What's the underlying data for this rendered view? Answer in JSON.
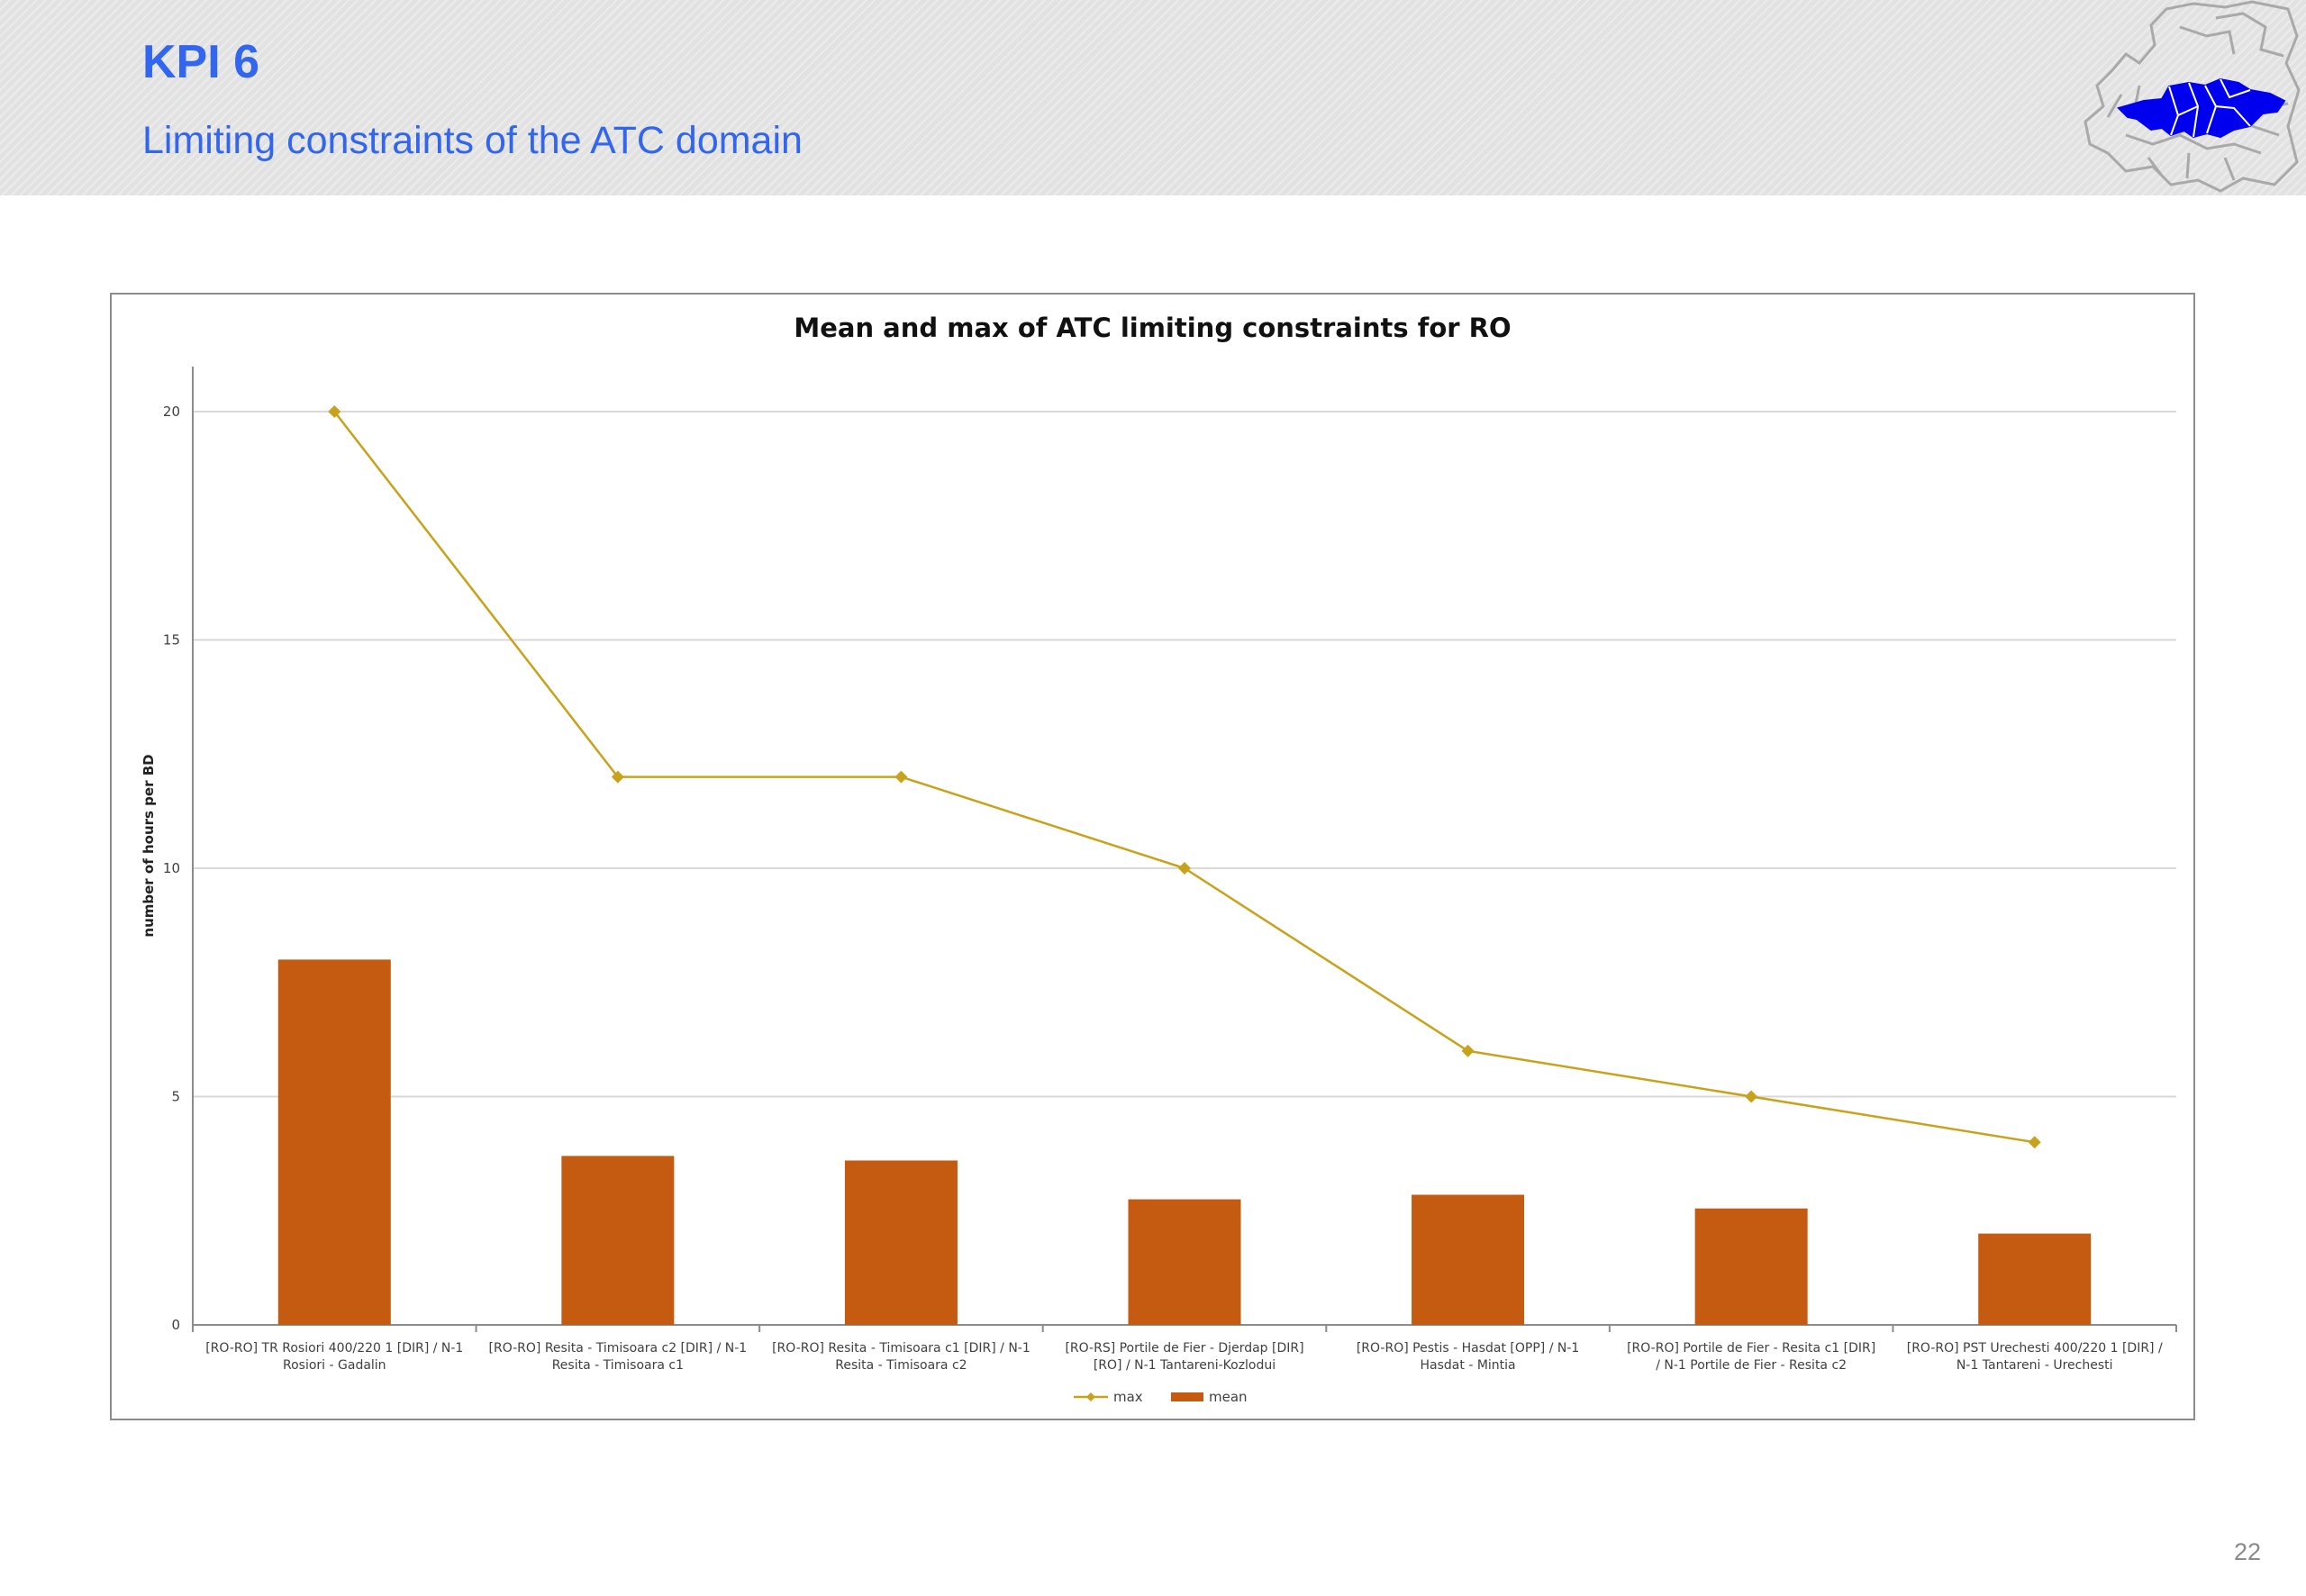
{
  "slide": {
    "title": "KPI 6",
    "subtitle": "Limiting constraints of the ATC domain",
    "page_number": "22"
  },
  "logo": {
    "icon": "europe-map-logo",
    "highlight_color": "#0000ee",
    "outline_color": "#a0a0a0"
  },
  "colors": {
    "max": "#c9a21c",
    "mean": "#c55a11",
    "grid": "#d9d9d9",
    "axis": "#8c8c8c",
    "text": "#404040"
  },
  "chart_data": {
    "type": "bar",
    "title": "Mean and max of ATC limiting constraints for RO",
    "xlabel": "",
    "ylabel": "number of hours per BD",
    "ylim": [
      0,
      21
    ],
    "yticks": [
      "0",
      "5",
      "10",
      "15",
      "20"
    ],
    "grid": true,
    "legend_position": "bottom",
    "categories": [
      [
        "[RO-RO] TR Rosiori 400/220 1 [DIR] / N-1",
        "Rosiori - Gadalin"
      ],
      [
        "[RO-RO] Resita - Timisoara c2 [DIR] / N-1",
        "Resita - Timisoara c1"
      ],
      [
        "[RO-RO] Resita - Timisoara c1 [DIR] / N-1",
        "Resita - Timisoara c2"
      ],
      [
        "[RO-RS]  Portile de Fier - Djerdap [DIR]",
        "[RO] / N-1 Tantareni-Kozlodui"
      ],
      [
        "[RO-RO] Pestis - Hasdat [OPP] / N-1",
        "Hasdat - Mintia"
      ],
      [
        "[RO-RO] Portile de Fier - Resita c1 [DIR]",
        "/ N-1 Portile de Fier - Resita c2"
      ],
      [
        "[RO-RO] PST Urechesti 400/220 1 [DIR] /",
        "N-1 Tantareni - Urechesti"
      ]
    ],
    "series": [
      {
        "name": "max",
        "type": "line",
        "values": [
          20,
          12,
          12,
          10,
          6,
          5,
          4
        ]
      },
      {
        "name": "mean",
        "type": "bar",
        "values": [
          8.0,
          3.7,
          3.6,
          2.75,
          2.85,
          2.55,
          2.0
        ]
      }
    ]
  }
}
